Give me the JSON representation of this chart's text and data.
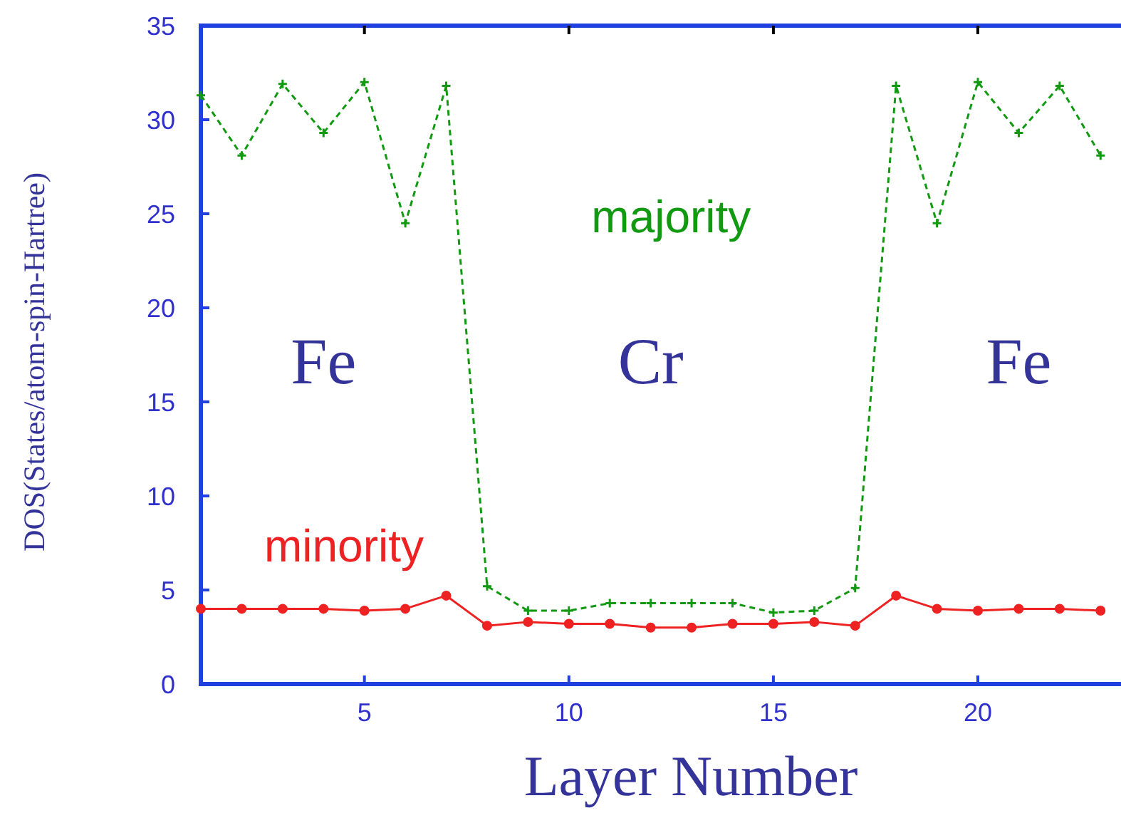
{
  "chart_data": {
    "type": "line",
    "xlabel": "Layer Number",
    "ylabel": "DOS(States/atom-spin-Hartree)",
    "x": [
      1,
      2,
      3,
      4,
      5,
      6,
      7,
      8,
      9,
      10,
      11,
      12,
      13,
      14,
      15,
      16,
      17,
      18,
      19,
      20,
      21,
      22,
      23
    ],
    "xlim": [
      1,
      23.5
    ],
    "xticks": [
      5,
      10,
      15,
      20
    ],
    "ylim": [
      0,
      35
    ],
    "yticks": [
      0,
      5,
      10,
      15,
      20,
      25,
      30,
      35
    ],
    "grid": false,
    "series": [
      {
        "name": "majority",
        "color": "#119911",
        "line_style": "dashed",
        "marker": "cross",
        "values": [
          31.3,
          28.1,
          31.9,
          29.3,
          32.0,
          24.5,
          31.8,
          5.2,
          3.9,
          3.9,
          4.3,
          4.3,
          4.3,
          4.3,
          3.8,
          3.9,
          5.1,
          31.8,
          24.5,
          32.0,
          29.3,
          31.8,
          28.1
        ]
      },
      {
        "name": "minority",
        "color": "#ee2222",
        "line_style": "solid",
        "marker": "circle",
        "values": [
          4.0,
          4.0,
          4.0,
          4.0,
          3.9,
          4.0,
          4.7,
          3.1,
          3.3,
          3.2,
          3.2,
          3.0,
          3.0,
          3.2,
          3.2,
          3.3,
          3.1,
          4.7,
          4.0,
          3.9,
          4.0,
          4.0,
          3.9
        ]
      }
    ],
    "annotations": [
      "Fe",
      "Cr",
      "Fe"
    ]
  }
}
